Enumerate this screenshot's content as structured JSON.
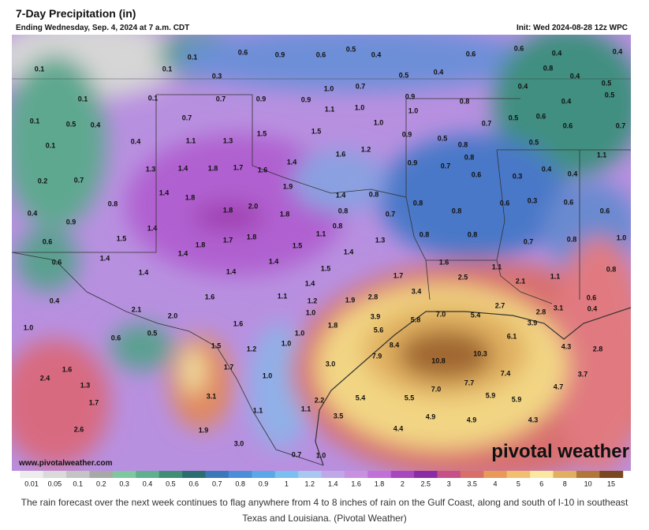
{
  "header": {
    "title": "7-Day Precipitation (in)",
    "subtitle": "Ending Wednesday, Sep. 4, 2024 at 7 a.m. CDT",
    "init": "Init: Wed 2024-08-28 12z WPC"
  },
  "map": {
    "labels": [
      "0.1",
      "0.6",
      "0.9",
      "0.6",
      "0.5",
      "0.4",
      "0.6",
      "0.6",
      "0.4",
      "0.4",
      "0.1",
      "0.1",
      "0.3",
      "0.5",
      "0.4",
      "0.8",
      "0.4",
      "0.5",
      "0.1",
      "0.1",
      "0.7",
      "0.9",
      "1.0",
      "0.7",
      "0.9",
      "0.9",
      "0.8",
      "0.4",
      "0.4",
      "0.5",
      "0.1",
      "0.5",
      "0.4",
      "0.7",
      "1.1",
      "1.0",
      "1.0",
      "1.0",
      "0.7",
      "0.5",
      "0.6",
      "0.6",
      "0.7",
      "0.1",
      "0.4",
      "1.1",
      "1.3",
      "1.5",
      "1.5",
      "0.9",
      "0.5",
      "0.8",
      "0.5",
      "1.6",
      "1.2",
      "0.8",
      "1.1",
      "0.2",
      "0.7",
      "1.3",
      "1.4",
      "1.8",
      "1.7",
      "1.6",
      "1.4",
      "0.9",
      "0.7",
      "0.6",
      "0.3",
      "0.4",
      "0.4",
      "1.9",
      "1.4",
      "1.8",
      "1.4",
      "0.8",
      "0.8",
      "2.0",
      "1.8",
      "1.8",
      "0.8",
      "0.7",
      "0.8",
      "0.8",
      "0.6",
      "0.3",
      "0.6",
      "0.6",
      "0.4",
      "0.9",
      "1.4",
      "0.8",
      "1.5",
      "1.7",
      "1.8",
      "1.8",
      "1.1",
      "1.5",
      "1.3",
      "0.8",
      "0.8",
      "0.7",
      "0.8",
      "1.0",
      "0.6",
      "1.4",
      "1.4",
      "1.4",
      "1.4",
      "1.6",
      "0.6",
      "1.4",
      "1.4",
      "1.5",
      "1.7",
      "2.5",
      "2.1",
      "1.1",
      "0.8",
      "1.1",
      "1.4",
      "3.4",
      "1.6",
      "1.1",
      "1.2",
      "1.9",
      "2.8",
      "0.6",
      "0.4",
      "2.7",
      "0.4",
      "3.1",
      "2.1",
      "2.0",
      "1.0",
      "3.9",
      "5.8",
      "7.0",
      "5.4",
      "2.8",
      "3.9",
      "1.0",
      "1.6",
      "1.8",
      "5.6",
      "0.6",
      "0.5",
      "1.0",
      "6.1",
      "1.5",
      "1.2",
      "1.0",
      "8.4",
      "10.3",
      "4.3",
      "2.8",
      "7.9",
      "10.8",
      "3.0",
      "1.7",
      "1.6",
      "7.4",
      "3.7",
      "1.0",
      "2.4",
      "1.3",
      "7.7",
      "4.7",
      "7.0",
      "3.1",
      "5.4",
      "5.5",
      "5.9",
      "5.9",
      "1.7",
      "2.2",
      "1.1",
      "1.1",
      "4.9",
      "4.9",
      "3.5",
      "4.3",
      "2.6",
      "1.9",
      "4.4",
      "3.0",
      "0.7",
      "1.0"
    ],
    "watermark": "www.pivotalweather.com",
    "logo": "pivotal weather"
  },
  "legend": {
    "labels": [
      "0.01",
      "0.05",
      "0.1",
      "0.2",
      "0.3",
      "0.4",
      "0.5",
      "0.6",
      "0.7",
      "0.8",
      "0.9",
      "1",
      "1.2",
      "1.4",
      "1.6",
      "1.8",
      "2",
      "2.5",
      "3",
      "3.5",
      "4",
      "5",
      "6",
      "8",
      "10",
      "15"
    ],
    "colors": [
      "#ececec",
      "#dadada",
      "#c4c4c4",
      "#a8a8a8",
      "#7fc79f",
      "#5fb08d",
      "#3f8f75",
      "#2a6e70",
      "#3a78b8",
      "#4a8fd8",
      "#5aa8e8",
      "#7ac0f0",
      "#a9c8f0",
      "#c0a8e8",
      "#c890e0",
      "#c070d8",
      "#a848c0",
      "#8a2ca8",
      "#c85088",
      "#d8706a",
      "#e89a5a",
      "#f0c070",
      "#f8e8a0",
      "#e0b060",
      "#b07838",
      "#7a4820"
    ]
  },
  "caption": "The rain forecast over the next week continues to flag anywhere from 4 to 8 inches of rain on the Gulf Coast, along and south of I-10 in southeast Texas and Louisiana. (Pivotal Weather)"
}
